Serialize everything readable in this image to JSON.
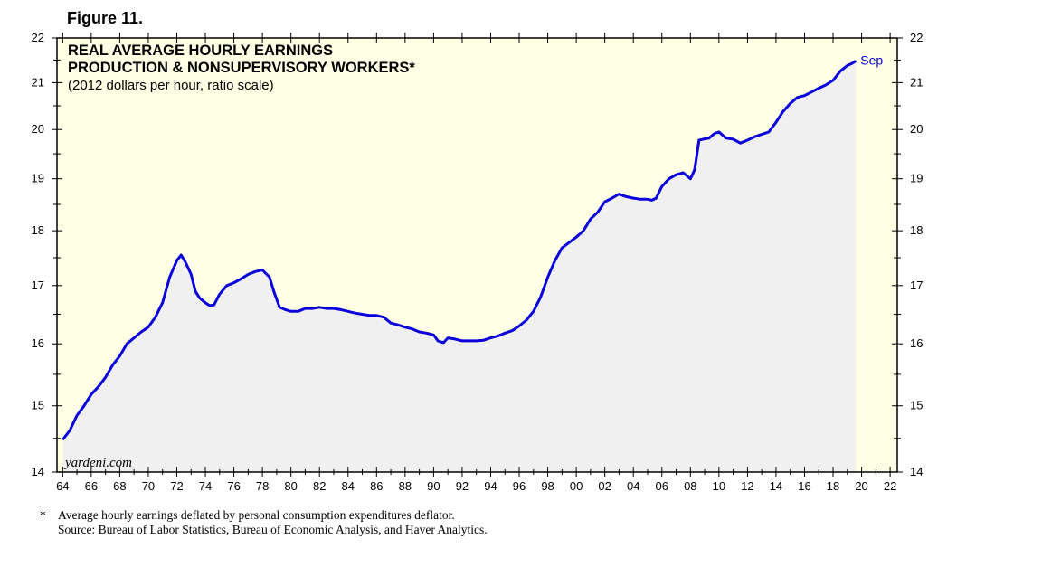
{
  "figure_label": "Figure 11.",
  "footnote": {
    "marker": "*",
    "text": "Average hourly earnings deflated by personal consumption expenditures deflator.",
    "source": "Source: Bureau of Labor Statistics, Bureau of Economic Analysis, and Haver Analytics."
  },
  "colors": {
    "background": "#FFFFE6",
    "area": "#F0F0F0",
    "line": "#0A00DC",
    "text": "#000000"
  },
  "chart_data": {
    "type": "line",
    "title": "REAL AVERAGE HOURLY EARNINGS",
    "title_line2": "PRODUCTION & NONSUPERVISORY WORKERS*",
    "subtitle": "(2012 dollars per hour, ratio scale)",
    "watermark": "yardeni.com",
    "end_label": "Sep",
    "xlabel": "",
    "ylabel": "",
    "y_scale": "log",
    "ylim": [
      14,
      22
    ],
    "xlim": [
      1963.6,
      2022.5
    ],
    "y_ticks": [
      14,
      15,
      16,
      17,
      18,
      19,
      20,
      21,
      22
    ],
    "x_tick_labels": [
      "64",
      "66",
      "68",
      "70",
      "72",
      "74",
      "76",
      "78",
      "80",
      "82",
      "84",
      "86",
      "88",
      "90",
      "92",
      "94",
      "96",
      "98",
      "00",
      "02",
      "04",
      "06",
      "08",
      "10",
      "12",
      "14",
      "16",
      "18",
      "20",
      "22"
    ],
    "x_tick_years": [
      1964,
      1966,
      1968,
      1970,
      1972,
      1974,
      1976,
      1978,
      1980,
      1982,
      1984,
      1986,
      1988,
      1990,
      1992,
      1994,
      1996,
      1998,
      2000,
      2002,
      2004,
      2006,
      2008,
      2010,
      2012,
      2014,
      2016,
      2018,
      2020,
      2022
    ],
    "series": [
      {
        "name": "Real Average Hourly Earnings",
        "x": [
          1964.0,
          1964.5,
          1965.0,
          1965.5,
          1966.0,
          1966.5,
          1967.0,
          1967.5,
          1968.0,
          1968.5,
          1969.0,
          1969.5,
          1970.0,
          1970.5,
          1971.0,
          1971.5,
          1972.0,
          1972.3,
          1972.6,
          1973.0,
          1973.3,
          1973.6,
          1974.0,
          1974.3,
          1974.6,
          1975.0,
          1975.5,
          1976.0,
          1976.5,
          1977.0,
          1977.5,
          1978.0,
          1978.5,
          1978.8,
          1979.2,
          1979.6,
          1980.0,
          1980.5,
          1981.0,
          1981.5,
          1982.0,
          1982.5,
          1983.0,
          1983.5,
          1984.0,
          1984.5,
          1985.0,
          1985.5,
          1986.0,
          1986.5,
          1987.0,
          1987.5,
          1988.0,
          1988.5,
          1989.0,
          1989.5,
          1990.0,
          1990.3,
          1990.7,
          1991.0,
          1991.5,
          1992.0,
          1992.5,
          1993.0,
          1993.5,
          1994.0,
          1994.5,
          1995.0,
          1995.5,
          1996.0,
          1996.5,
          1997.0,
          1997.5,
          1998.0,
          1998.5,
          1999.0,
          1999.5,
          2000.0,
          2000.5,
          2001.0,
          2001.5,
          2002.0,
          2002.5,
          2003.0,
          2003.5,
          2004.0,
          2004.5,
          2005.0,
          2005.3,
          2005.6,
          2006.0,
          2006.5,
          2007.0,
          2007.5,
          2008.0,
          2008.3,
          2008.6,
          2008.9,
          2009.3,
          2009.7,
          2010.0,
          2010.5,
          2011.0,
          2011.5,
          2012.0,
          2012.5,
          2013.0,
          2013.5,
          2014.0,
          2014.5,
          2015.0,
          2015.5,
          2016.0,
          2016.5,
          2017.0,
          2017.5,
          2018.0,
          2018.5,
          2019.0,
          2019.3,
          2019.6
        ],
        "values": [
          14.48,
          14.62,
          14.85,
          15.0,
          15.18,
          15.3,
          15.45,
          15.65,
          15.8,
          16.0,
          16.1,
          16.2,
          16.28,
          16.45,
          16.7,
          17.15,
          17.45,
          17.55,
          17.42,
          17.2,
          16.9,
          16.78,
          16.7,
          16.65,
          16.66,
          16.85,
          17.0,
          17.05,
          17.12,
          17.2,
          17.25,
          17.28,
          17.15,
          16.9,
          16.62,
          16.58,
          16.55,
          16.55,
          16.6,
          16.6,
          16.62,
          16.6,
          16.6,
          16.58,
          16.55,
          16.52,
          16.5,
          16.48,
          16.48,
          16.45,
          16.35,
          16.32,
          16.28,
          16.25,
          16.2,
          16.18,
          16.15,
          16.05,
          16.02,
          16.1,
          16.08,
          16.05,
          16.05,
          16.05,
          16.06,
          16.1,
          16.13,
          16.18,
          16.22,
          16.3,
          16.4,
          16.55,
          16.8,
          17.15,
          17.45,
          17.68,
          17.78,
          17.88,
          18.0,
          18.22,
          18.35,
          18.55,
          18.62,
          18.7,
          18.65,
          18.62,
          18.6,
          18.6,
          18.58,
          18.62,
          18.85,
          19.0,
          19.08,
          19.12,
          19.0,
          19.18,
          19.78,
          19.8,
          19.82,
          19.92,
          19.95,
          19.82,
          19.8,
          19.72,
          19.78,
          19.85,
          19.9,
          19.95,
          20.15,
          20.38,
          20.55,
          20.68,
          20.72,
          20.8,
          20.88,
          20.95,
          21.05,
          21.25,
          21.38,
          21.42,
          21.48
        ]
      }
    ]
  }
}
